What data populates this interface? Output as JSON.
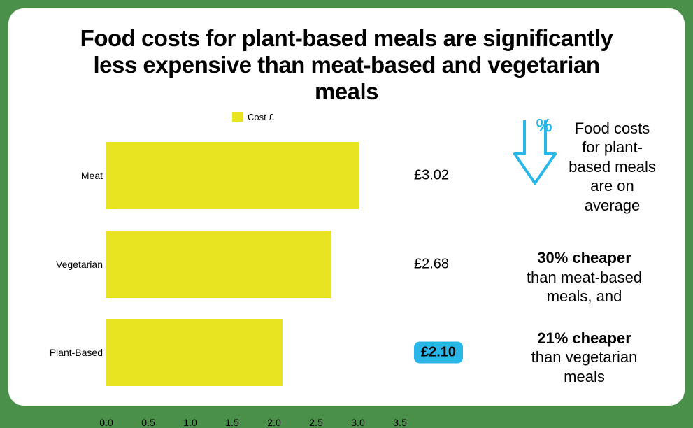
{
  "title": "Food costs for plant-based meals are significantly less expensive than meat-based and vegetarian meals",
  "chart": {
    "type": "bar-horizontal",
    "legend_label": "Cost £",
    "bar_color": "#e8e421",
    "highlight_color": "#29b6e8",
    "arrow_color": "#29b6e8",
    "background_color": "#ffffff",
    "frame_color": "#4a8f4a",
    "text_color": "#000000",
    "x_min": 0.0,
    "x_max": 3.5,
    "x_ticks": [
      "0.0",
      "0.5",
      "1.0",
      "1.5",
      "2.0",
      "2.5",
      "3.0",
      "3.5"
    ],
    "categories": [
      {
        "label": "Meat",
        "value": 3.02,
        "value_label": "£3.02",
        "highlight": false
      },
      {
        "label": "Vegetarian",
        "value": 2.68,
        "value_label": "£2.68",
        "highlight": false
      },
      {
        "label": "Plant-Based",
        "value": 2.1,
        "value_label": "£2.10",
        "highlight": true
      }
    ],
    "title_fontsize": 33,
    "value_fontsize": 20,
    "axis_fontsize": 14,
    "side_fontsize": 22
  },
  "arrow_symbol": "%",
  "side": {
    "intro": "Food costs for plant-based meals are on average",
    "stat1_bold": "30% cheaper",
    "stat1_rest": "than meat-based meals, and",
    "stat2_bold": "21% cheaper",
    "stat2_rest": "than vegetarian meals"
  }
}
